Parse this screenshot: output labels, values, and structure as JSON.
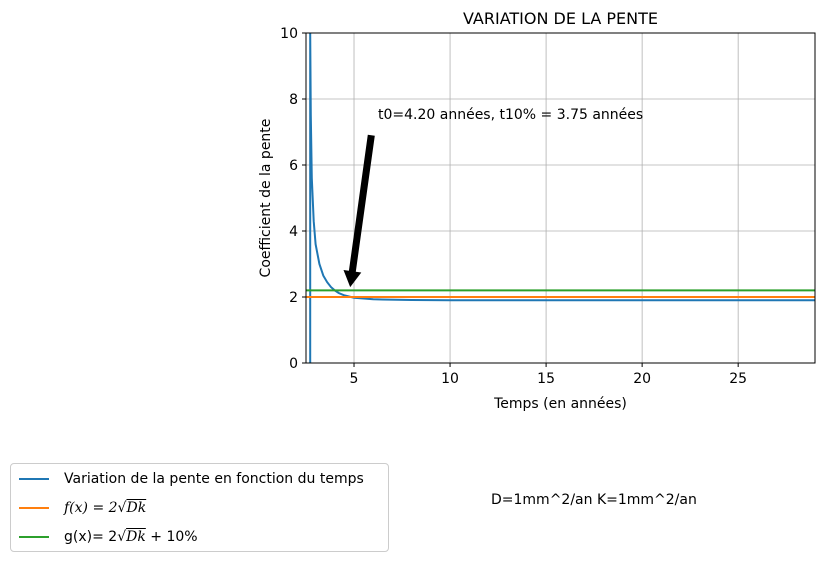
{
  "chart_data": {
    "type": "line",
    "title": "VARIATION DE LA PENTE",
    "xlabel": "Temps (en années)",
    "ylabel": "Coefficient de la pente",
    "xlim": [
      2.5,
      29
    ],
    "ylim": [
      0,
      10
    ],
    "xticks": [
      5,
      10,
      15,
      20,
      25
    ],
    "yticks": [
      0,
      2,
      4,
      6,
      8,
      10
    ],
    "grid": true,
    "annotation": {
      "text": "t0=4.20 années, t10% = 3.75 années",
      "arrow_from": [
        5.9,
        6.9
      ],
      "arrow_to": [
        4.8,
        2.3
      ]
    },
    "series": [
      {
        "name": "Variation de la pente en fonction du temps",
        "color": "#1f77b4",
        "x": [
          2.72,
          2.72,
          2.75,
          2.8,
          2.9,
          3.0,
          3.2,
          3.4,
          3.6,
          3.8,
          4.0,
          4.2,
          4.5,
          5.0,
          6,
          8,
          10,
          15,
          20,
          25,
          29
        ],
        "y": [
          0,
          10,
          7.5,
          5.6,
          4.3,
          3.6,
          3.0,
          2.65,
          2.45,
          2.3,
          2.2,
          2.12,
          2.05,
          1.98,
          1.93,
          1.91,
          1.9,
          1.9,
          1.9,
          1.9,
          1.9
        ]
      },
      {
        "name": "f(x) = 2√Dk",
        "color": "#ff7f0e",
        "x": [
          2.5,
          29
        ],
        "y": [
          2.0,
          2.0
        ]
      },
      {
        "name": "g(x)= 2√Dk + 10%",
        "color": "#2ca02c",
        "x": [
          2.5,
          29
        ],
        "y": [
          2.2,
          2.2
        ]
      }
    ]
  },
  "legend": {
    "item1": "Variation de la pente en fonction du temps",
    "item2_prefix": "f(x) = 2",
    "item2_root": "Dk",
    "item3_prefix": "g(x)= 2",
    "item3_root": "Dk",
    "item3_suffix": " + 10%",
    "colors": [
      "#1f77b4",
      "#ff7f0e",
      "#2ca02c"
    ]
  },
  "params": {
    "text": "D=1mm^2/an K=1mm^2/an"
  }
}
